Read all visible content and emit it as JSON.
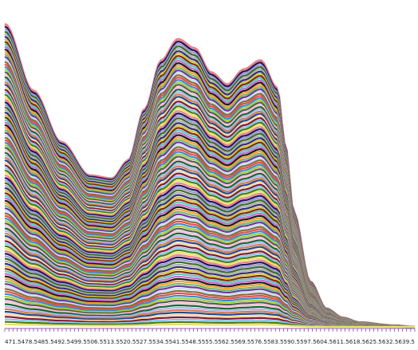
{
  "chart_data": {
    "type": "line",
    "title": "",
    "xlabel": "",
    "ylabel": "",
    "grid": false,
    "legend": "none",
    "x_tick_labels": [
      "471.5",
      "478.5",
      "485.5",
      "492.5",
      "499.5",
      "506.5",
      "513.5",
      "520.5",
      "527.5",
      "534.5",
      "541.5",
      "548.5",
      "555.5",
      "562.5",
      "569.5",
      "576.5",
      "583.5",
      "590.5",
      "597.5",
      "604.5",
      "611.5",
      "618.5",
      "625.5",
      "632.5",
      "639.5"
    ],
    "xlim": [
      468,
      642
    ],
    "baseline": 0,
    "series_count": 120,
    "max_series_profile": {
      "x": [
        468,
        480,
        492,
        504,
        513.5,
        520.5,
        527.5,
        534.5,
        541.5,
        548.5,
        555.5,
        562.5,
        569.5,
        576.5,
        583.5,
        587.0,
        590.5,
        597.5,
        604.5,
        611.5,
        618.5,
        632.5,
        642
      ],
      "values": [
        1.0,
        0.78,
        0.61,
        0.5,
        0.49,
        0.55,
        0.72,
        0.88,
        0.95,
        0.92,
        0.84,
        0.8,
        0.85,
        0.88,
        0.79,
        0.6,
        0.38,
        0.15,
        0.06,
        0.03,
        0.015,
        0.005,
        0.0
      ]
    },
    "series_colors": [
      "#e8838a",
      "#1c1464",
      "#9a9ac8",
      "#3a6a2a",
      "#b0b0b0",
      "#2d2d7a",
      "#d6c23a",
      "#7b2a14",
      "#5ec4c4",
      "#c86ec8",
      "#1a1a1a",
      "#f0a030",
      "#74b874",
      "#6a3a9a",
      "#c8e0f0",
      "#8c6a3a",
      "#e05050",
      "#3c8cc8",
      "#a0d040",
      "#5a5a5a",
      "#f5c0d0",
      "#14643c",
      "#b4b4e8",
      "#d08050",
      "#244a8c",
      "#ffd7a0",
      "#7a1a3a",
      "#88c8e8",
      "#4c7a14",
      "#e8e070"
    ]
  }
}
